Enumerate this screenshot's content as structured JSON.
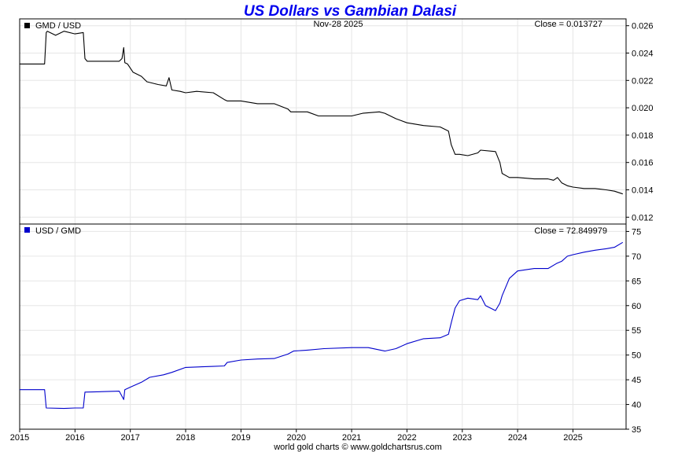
{
  "chart_data": [
    {
      "type": "line",
      "title": "US Dollars vs Gambian Dalasi",
      "legend": "GMD / USD",
      "date_label": "Nov-28  2025",
      "close_label": "Close = 0.013727",
      "ylim": [
        0.0115,
        0.0265
      ],
      "yticks": [
        0.026,
        0.024,
        0.022,
        0.02,
        0.018,
        0.016,
        0.014,
        0.012
      ],
      "ytick_labels": [
        "0.026",
        "0.024",
        "0.022",
        "0.020",
        "0.018",
        "0.016",
        "0.014",
        "0.012"
      ],
      "series_color": "#000000",
      "x": [
        2015.0,
        2015.45,
        2015.48,
        2015.5,
        2015.65,
        2015.8,
        2016.0,
        2016.15,
        2016.18,
        2016.22,
        2016.4,
        2016.6,
        2016.8,
        2016.85,
        2016.88,
        2016.9,
        2016.95,
        2017.05,
        2017.2,
        2017.3,
        2017.5,
        2017.65,
        2017.7,
        2017.75,
        2017.9,
        2018.0,
        2018.2,
        2018.5,
        2018.7,
        2018.75,
        2019.0,
        2019.3,
        2019.6,
        2019.85,
        2019.9,
        2020.2,
        2020.4,
        2020.6,
        2021.0,
        2021.2,
        2021.5,
        2021.6,
        2021.8,
        2022.0,
        2022.3,
        2022.6,
        2022.75,
        2022.8,
        2022.87,
        2022.95,
        2023.1,
        2023.28,
        2023.33,
        2023.6,
        2023.68,
        2023.72,
        2023.85,
        2024.0,
        2024.3,
        2024.55,
        2024.65,
        2024.72,
        2024.8,
        2024.9,
        2025.0,
        2025.2,
        2025.4,
        2025.6,
        2025.75,
        2025.9
      ],
      "values": [
        0.0232,
        0.0232,
        0.0255,
        0.0256,
        0.0253,
        0.0256,
        0.0254,
        0.0255,
        0.0236,
        0.0234,
        0.0234,
        0.0234,
        0.0234,
        0.0236,
        0.0244,
        0.0233,
        0.0232,
        0.0226,
        0.0223,
        0.0219,
        0.0217,
        0.0216,
        0.0222,
        0.0213,
        0.0212,
        0.0211,
        0.0212,
        0.0211,
        0.0206,
        0.0205,
        0.0205,
        0.0203,
        0.0203,
        0.0199,
        0.0197,
        0.0197,
        0.0194,
        0.0194,
        0.0194,
        0.0196,
        0.0197,
        0.0196,
        0.0192,
        0.0189,
        0.0187,
        0.0186,
        0.0183,
        0.0173,
        0.0166,
        0.0166,
        0.0165,
        0.0167,
        0.0169,
        0.0168,
        0.016,
        0.0152,
        0.0149,
        0.0149,
        0.0148,
        0.0148,
        0.0147,
        0.0149,
        0.0145,
        0.0143,
        0.0142,
        0.0141,
        0.0141,
        0.014,
        0.0139,
        0.0137
      ]
    },
    {
      "type": "line",
      "legend": "USD / GMD",
      "close_label": "Close = 72.849979",
      "ylim": [
        35,
        76.5
      ],
      "yticks": [
        75,
        70,
        65,
        60,
        55,
        50,
        45,
        40,
        35
      ],
      "ytick_labels": [
        "75",
        "70",
        "65",
        "60",
        "55",
        "50",
        "45",
        "40",
        "35"
      ],
      "series_color": "#0000cc",
      "x": [
        2015.0,
        2015.45,
        2015.48,
        2015.8,
        2016.0,
        2016.15,
        2016.18,
        2016.5,
        2016.8,
        2016.88,
        2016.9,
        2017.0,
        2017.2,
        2017.35,
        2017.6,
        2017.75,
        2018.0,
        2018.5,
        2018.7,
        2018.75,
        2019.0,
        2019.3,
        2019.6,
        2019.85,
        2019.95,
        2020.2,
        2020.5,
        2021.0,
        2021.3,
        2021.6,
        2021.8,
        2022.0,
        2022.3,
        2022.6,
        2022.75,
        2022.8,
        2022.87,
        2022.95,
        2023.1,
        2023.28,
        2023.33,
        2023.42,
        2023.6,
        2023.68,
        2023.72,
        2023.85,
        2024.0,
        2024.3,
        2024.55,
        2024.7,
        2024.8,
        2024.9,
        2025.0,
        2025.2,
        2025.4,
        2025.6,
        2025.75,
        2025.9
      ],
      "values": [
        43.0,
        43.0,
        39.3,
        39.2,
        39.3,
        39.3,
        42.5,
        42.6,
        42.7,
        41.0,
        43.0,
        43.5,
        44.5,
        45.5,
        46.0,
        46.5,
        47.5,
        47.7,
        47.8,
        48.5,
        49.0,
        49.2,
        49.3,
        50.2,
        50.8,
        51.0,
        51.3,
        51.5,
        51.5,
        50.8,
        51.3,
        52.3,
        53.3,
        53.5,
        54.2,
        56.5,
        59.5,
        61.0,
        61.5,
        61.2,
        62.0,
        60.0,
        59.0,
        60.5,
        62.0,
        65.5,
        67.0,
        67.5,
        67.5,
        68.5,
        69.0,
        70.0,
        70.3,
        70.8,
        71.2,
        71.5,
        71.8,
        72.8
      ]
    }
  ],
  "x_axis": {
    "range": [
      2015.0,
      2025.96
    ],
    "ticks": [
      2015,
      2016,
      2017,
      2018,
      2019,
      2020,
      2021,
      2022,
      2023,
      2024,
      2025
    ],
    "tick_labels": [
      "2015",
      "2016",
      "2017",
      "2018",
      "2019",
      "2020",
      "2021",
      "2022",
      "2023",
      "2024",
      "2025"
    ]
  },
  "footer": "world gold charts © www.goldchartsrus.com",
  "colors": {
    "title": "#0000ee",
    "grid": "#e6e6e6",
    "axis": "#000000"
  }
}
